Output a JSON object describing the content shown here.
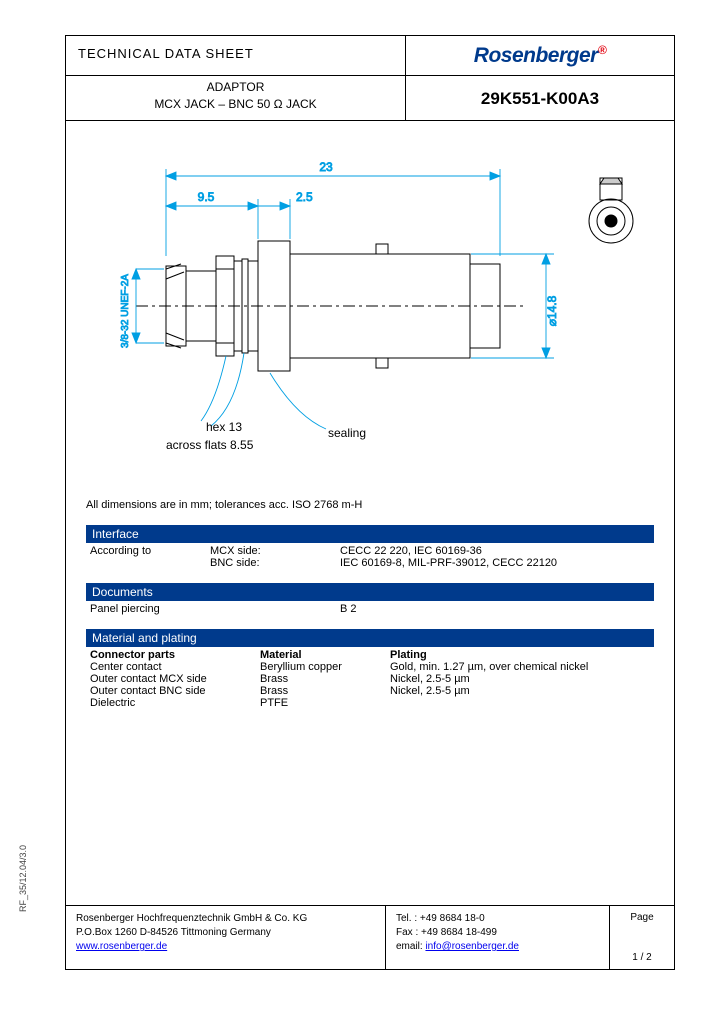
{
  "header": {
    "tds": "TECHNICAL DATA SHEET",
    "logo": "Rosenberger",
    "product_line1": "ADAPTOR",
    "product_line2": "MCX JACK – BNC 50 Ω JACK",
    "partno": "29K551-K00A3"
  },
  "drawing": {
    "dim_overall": "23",
    "dim_a": "9.5",
    "dim_b": "2.5",
    "diameter": "⌀14.8",
    "thread": "3/8-32 UNEF-2A",
    "hex_note": "hex 13",
    "flats_note": "across flats 8.55",
    "seal_note": "sealing",
    "dim_color": "#009fe3",
    "line_color": "#000000"
  },
  "note": "All dimensions are in mm; tolerances acc. ISO 2768 m-H",
  "sections": {
    "interface": {
      "title": "Interface",
      "label": "According to",
      "mcx_side": "MCX side:",
      "mcx_val": "CECC 22 220, IEC 60169-36",
      "bnc_side": "BNC side:",
      "bnc_val": "IEC 60169-8, MIL-PRF-39012, CECC 22120"
    },
    "documents": {
      "title": "Documents",
      "label": "Panel piercing",
      "val": "B 2"
    },
    "material": {
      "title": "Material and plating",
      "h1": "Connector parts",
      "h2": "Material",
      "h3": "Plating",
      "rows": [
        {
          "p": "Center contact",
          "m": "Beryllium copper",
          "pl": "Gold, min. 1.27 µm, over chemical nickel"
        },
        {
          "p": "Outer contact MCX side",
          "m": "Brass",
          "pl": "Nickel, 2.5-5 µm"
        },
        {
          "p": "Outer contact BNC side",
          "m": "Brass",
          "pl": "Nickel, 2.5-5 µm"
        },
        {
          "p": "Dielectric",
          "m": "PTFE",
          "pl": ""
        }
      ]
    }
  },
  "footer": {
    "company": "Rosenberger Hochfrequenztechnik GmbH & Co. KG",
    "addr": "P.O.Box 1260    D-84526 Tittmoning    Germany",
    "web": "www.rosenberger.de",
    "tel": "Tel.   : +49 8684  18-0",
    "fax": "Fax   : +49 8684 18-499",
    "email_label": "email: ",
    "email": "info@rosenberger.de",
    "page_label": "Page",
    "page": "1 / 2"
  },
  "side_label": "RF_35/12.04/3.0"
}
